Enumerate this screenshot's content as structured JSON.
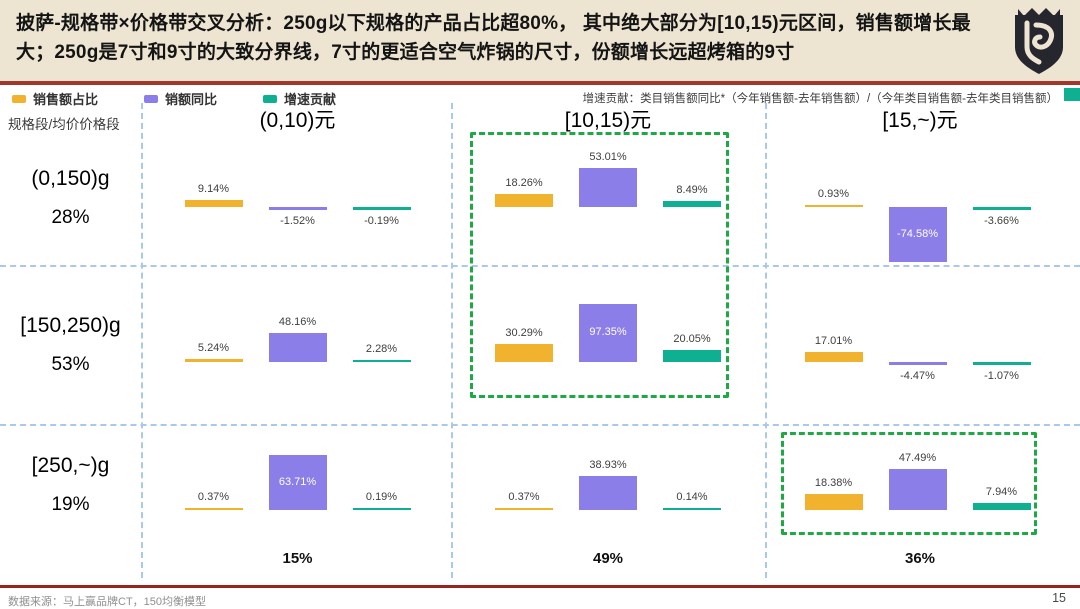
{
  "header": {
    "title": "披萨-规格带×价格带交叉分析：250g以下规格的产品占比超80%， 其中绝大部分为[10,15)元区间，销售额增长最大；250g是7寸和9寸的大致分界线，7寸的更适合空气炸锅的尺寸，份额增长远超烤箱的9寸"
  },
  "note": "增速贡献：类目销售额同比*（今年销售额-去年销售额）/（今年类目销售额-去年类目销售额）",
  "footer": {
    "source": "数据来源：马上赢品牌CT，150均衡模型",
    "page": "15"
  },
  "chart_data": {
    "type": "bar",
    "title": "披萨-规格带×价格带交叉分析",
    "unit": "%",
    "row_header": "规格段/均价价格段",
    "legend": [
      {
        "name": "销售额占比",
        "color": "#F1B32E"
      },
      {
        "name": "销额同比",
        "color": "#8C7EE8"
      },
      {
        "name": "增速贡献",
        "color": "#0FAF92"
      }
    ],
    "columns": [
      {
        "label": "(0,10)元",
        "total": "15%"
      },
      {
        "label": "[10,15)元",
        "total": "49%"
      },
      {
        "label": "[15,~)元",
        "total": "36%"
      }
    ],
    "rows": [
      {
        "label": "(0,150)g",
        "share_of_sales": "28%",
        "cells": [
          [
            9.14,
            -1.52,
            -0.19
          ],
          [
            18.26,
            53.01,
            8.49
          ],
          [
            0.93,
            -74.58,
            -3.66
          ]
        ]
      },
      {
        "label": "[150,250)g",
        "share_of_sales": "53%",
        "cells": [
          [
            5.24,
            48.16,
            2.28
          ],
          [
            30.29,
            97.35,
            20.05
          ],
          [
            17.01,
            -4.47,
            -1.07
          ]
        ]
      },
      {
        "label": "[250,~)g",
        "share_of_sales": "19%",
        "cells": [
          [
            0.37,
            63.71,
            0.19
          ],
          [
            0.37,
            38.93,
            0.14
          ],
          [
            18.38,
            47.49,
            7.94
          ]
        ]
      }
    ],
    "value_labels": [
      [
        [
          "9.14%",
          "-1.52%",
          "-0.19%"
        ],
        [
          "18.26%",
          "53.01%",
          "8.49%"
        ],
        [
          "0.93%",
          "-74.58%",
          "-3.66%"
        ]
      ],
      [
        [
          "5.24%",
          "48.16%",
          "2.28%"
        ],
        [
          "30.29%",
          "97.35%",
          "20.05%"
        ],
        [
          "17.01%",
          "-4.47%",
          "-1.07%"
        ]
      ],
      [
        [
          "0.37%",
          "63.71%",
          "0.19%"
        ],
        [
          "0.37%",
          "38.93%",
          "0.14%"
        ],
        [
          "18.38%",
          "47.49%",
          "7.94%"
        ]
      ]
    ],
    "highlight_boxes": [
      {
        "column_index": 1,
        "row_start": 0,
        "row_end": 1
      },
      {
        "column_index": 2,
        "row_start": 2,
        "row_end": 2
      }
    ],
    "grid": "dashed",
    "legend_position": "top-left"
  }
}
